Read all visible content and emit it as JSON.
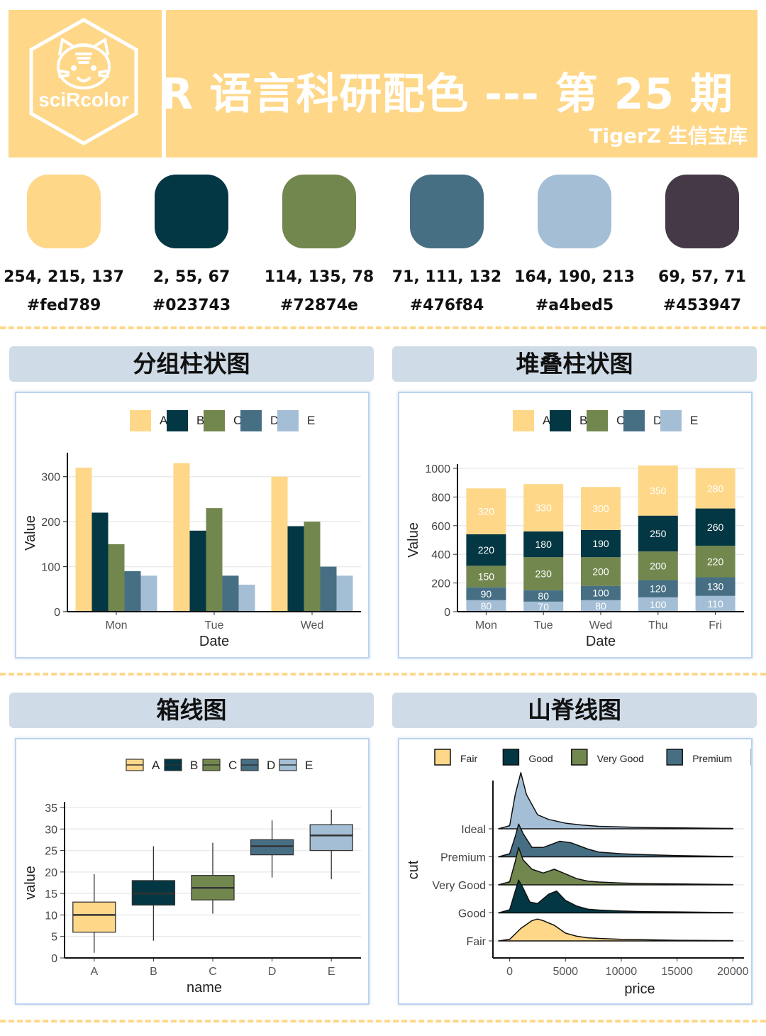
{
  "header": {
    "logo_text": "sciRcolor",
    "title": "R 语言科研配色 --- 第 25 期",
    "subtitle": "TigerZ 生信宝库"
  },
  "palette": [
    {
      "hex_label": "#fed789",
      "rgb": "254, 215, 137",
      "color": "#fed789"
    },
    {
      "hex_label": "#023743",
      "rgb": "2, 55, 67",
      "color": "#023743"
    },
    {
      "hex_label": "#72874e",
      "rgb": "114, 135, 78",
      "color": "#72874e"
    },
    {
      "hex_label": "#476f84",
      "rgb": "71, 111, 132",
      "color": "#476f84"
    },
    {
      "hex_label": "#a4bed5",
      "rgb": "164, 190, 213",
      "color": "#a4bed5"
    },
    {
      "hex_label": "#453947",
      "rgb": "69, 57, 71",
      "color": "#453947"
    }
  ],
  "panels": {
    "grouped": "分组柱状图",
    "stacked": "堆叠柱状图",
    "boxplot": "箱线图",
    "ridgeline": "山脊线图"
  },
  "chart_data": [
    {
      "type": "bar",
      "xlabel": "Date",
      "ylabel": "Value",
      "ylim": [
        0,
        350
      ],
      "yticks": [
        0,
        100,
        200,
        300
      ],
      "legend": "top",
      "categories": [
        "Mon",
        "Tue",
        "Wed"
      ],
      "series": [
        {
          "name": "A",
          "color": "#fed789",
          "values": [
            320,
            330,
            300
          ]
        },
        {
          "name": "B",
          "color": "#023743",
          "values": [
            220,
            180,
            190
          ]
        },
        {
          "name": "C",
          "color": "#72874e",
          "values": [
            150,
            230,
            200
          ]
        },
        {
          "name": "D",
          "color": "#476f84",
          "values": [
            90,
            80,
            100
          ]
        },
        {
          "name": "E",
          "color": "#a4bed5",
          "values": [
            80,
            60,
            80
          ]
        }
      ]
    },
    {
      "type": "bar",
      "stacked": true,
      "xlabel": "Date",
      "ylabel": "Value",
      "ylim": [
        0,
        1000
      ],
      "yticks": [
        0,
        200,
        400,
        600,
        800,
        1000
      ],
      "legend": "top",
      "categories": [
        "Mon",
        "Tue",
        "Wed",
        "Thu",
        "Fri"
      ],
      "series": [
        {
          "name": "A",
          "color": "#fed789",
          "values": [
            320,
            330,
            300,
            350,
            280
          ]
        },
        {
          "name": "B",
          "color": "#023743",
          "values": [
            220,
            180,
            190,
            250,
            260
          ]
        },
        {
          "name": "C",
          "color": "#72874e",
          "values": [
            150,
            230,
            200,
            200,
            220
          ]
        },
        {
          "name": "D",
          "color": "#476f84",
          "values": [
            90,
            80,
            100,
            120,
            130
          ]
        },
        {
          "name": "E",
          "color": "#a4bed5",
          "values": [
            80,
            70,
            80,
            100,
            110
          ]
        }
      ]
    },
    {
      "type": "box",
      "xlabel": "name",
      "ylabel": "value",
      "ylim": [
        0,
        35
      ],
      "yticks": [
        0,
        5,
        10,
        15,
        20,
        25,
        30,
        35
      ],
      "legend": "top",
      "categories": [
        "A",
        "B",
        "C",
        "D",
        "E"
      ],
      "boxes": [
        {
          "name": "A",
          "color": "#fed789",
          "min": 1.2,
          "q1": 6,
          "median": 10,
          "q3": 13,
          "max": 19.5
        },
        {
          "name": "B",
          "color": "#023743",
          "min": 4,
          "q1": 12.3,
          "median": 15,
          "q3": 18,
          "max": 26
        },
        {
          "name": "C",
          "color": "#72874e",
          "min": 10.3,
          "q1": 13.5,
          "median": 16.3,
          "q3": 19.2,
          "max": 26.8
        },
        {
          "name": "D",
          "color": "#476f84",
          "min": 18.7,
          "q1": 24,
          "median": 26,
          "q3": 27.5,
          "max": 32
        },
        {
          "name": "E",
          "color": "#a4bed5",
          "min": 18.3,
          "q1": 25,
          "median": 28.5,
          "q3": 31,
          "max": 34.5
        }
      ]
    },
    {
      "type": "ridgeline",
      "xlabel": "price",
      "ylabel": "cut",
      "xlim": [
        -1500,
        21000
      ],
      "xticks": [
        0,
        5000,
        10000,
        15000,
        20000
      ],
      "legend": "top",
      "categories": [
        "Fair",
        "Good",
        "Very Good",
        "Premium",
        "Ideal"
      ],
      "series": [
        {
          "name": "Fair",
          "color": "#fed789",
          "x": [
            -1000,
            0,
            1000,
            2000,
            2500,
            3000,
            4000,
            5000,
            6000,
            7000,
            8000,
            10000,
            12000,
            15000,
            20000
          ],
          "density": [
            0,
            0.05,
            0.4,
            0.65,
            0.7,
            0.65,
            0.5,
            0.25,
            0.15,
            0.1,
            0.08,
            0.05,
            0.04,
            0.02,
            0.01
          ]
        },
        {
          "name": "Good",
          "color": "#023743",
          "x": [
            -1000,
            0,
            500,
            800,
            1200,
            1800,
            2500,
            3500,
            4200,
            5000,
            6000,
            7000,
            8000,
            10000,
            12000,
            15000,
            20000
          ],
          "density": [
            0,
            0.1,
            0.7,
            1.05,
            0.8,
            0.35,
            0.3,
            0.6,
            0.7,
            0.4,
            0.22,
            0.12,
            0.09,
            0.06,
            0.04,
            0.03,
            0.01
          ]
        },
        {
          "name": "Very Good",
          "color": "#72874e",
          "x": [
            -1000,
            0,
            500,
            800,
            1200,
            2000,
            3000,
            4000,
            5000,
            6000,
            7000,
            8000,
            10000,
            12000,
            15000,
            20000
          ],
          "density": [
            0,
            0.1,
            0.75,
            1.2,
            0.8,
            0.5,
            0.38,
            0.5,
            0.35,
            0.2,
            0.12,
            0.09,
            0.06,
            0.04,
            0.03,
            0.01
          ]
        },
        {
          "name": "Premium",
          "color": "#476f84",
          "x": [
            -1000,
            0,
            500,
            800,
            1200,
            2000,
            3000,
            4500,
            5500,
            7000,
            8000,
            10000,
            12000,
            15000,
            20000
          ],
          "density": [
            0,
            0.1,
            0.65,
            1.05,
            0.75,
            0.3,
            0.3,
            0.5,
            0.45,
            0.25,
            0.15,
            0.1,
            0.07,
            0.04,
            0.01
          ]
        },
        {
          "name": "Ideal",
          "color": "#a4bed5",
          "x": [
            -1000,
            0,
            500,
            1000,
            1500,
            2500,
            3500,
            5000,
            6500,
            8000,
            10000,
            12000,
            15000,
            20000
          ],
          "density": [
            0,
            0.1,
            1.1,
            1.8,
            1.1,
            0.45,
            0.3,
            0.18,
            0.12,
            0.08,
            0.06,
            0.04,
            0.03,
            0.01
          ]
        }
      ]
    }
  ]
}
